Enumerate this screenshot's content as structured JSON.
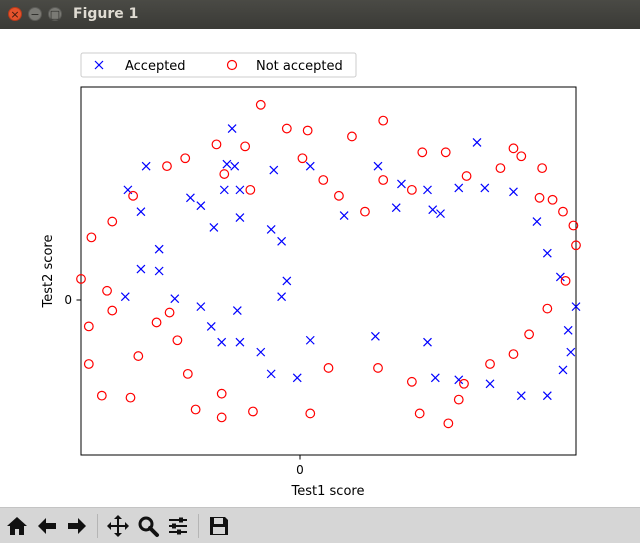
{
  "window": {
    "title": "Figure 1"
  },
  "titlebar_buttons": [
    {
      "name": "close",
      "glyph": "×"
    },
    {
      "name": "minimize",
      "glyph": "−"
    },
    {
      "name": "maximize",
      "glyph": "□"
    }
  ],
  "toolbar": {
    "buttons": [
      {
        "name": "home",
        "icon": "home-icon"
      },
      {
        "name": "back",
        "icon": "arrow-left-icon"
      },
      {
        "name": "forward",
        "icon": "arrow-right-icon"
      },
      {
        "name": "pan",
        "icon": "move-icon"
      },
      {
        "name": "zoom",
        "icon": "zoom-icon"
      },
      {
        "name": "subplots",
        "icon": "sliders-icon"
      },
      {
        "name": "save",
        "icon": "save-icon"
      }
    ]
  },
  "colors": {
    "accepted": "#0000ff",
    "not_accepted": "#ff0000",
    "titlebar": "#3c3b37",
    "toolbar": "#d6d6d6"
  },
  "chart_data": {
    "type": "scatter",
    "title": "",
    "xlabel": "Test1 score",
    "ylabel": "Test2 score",
    "xlim": [
      -0.83,
      1.07
    ],
    "ylim": [
      -0.76,
      1.1
    ],
    "xticks": [
      0
    ],
    "xtick_labels": [
      "0"
    ],
    "yticks": [
      0
    ],
    "ytick_labels": [
      "0"
    ],
    "legend": {
      "position": "top-left-outside",
      "entries": [
        "Accepted",
        "Not accepted"
      ]
    },
    "series": [
      {
        "name": "Accepted",
        "marker": "x",
        "color": "#0000ff",
        "points": [
          [
            -0.25,
            0.89
          ],
          [
            -0.27,
            0.71
          ],
          [
            -0.09,
            0.68
          ],
          [
            0.05,
            0.7
          ],
          [
            0.18,
            0.45
          ],
          [
            0.31,
            0.7
          ],
          [
            0.4,
            0.61
          ],
          [
            0.38,
            0.49
          ],
          [
            0.5,
            0.58
          ],
          [
            0.52,
            0.48
          ],
          [
            0.55,
            0.46
          ],
          [
            0.62,
            0.59
          ],
          [
            0.69,
            0.82
          ],
          [
            0.72,
            0.59
          ],
          [
            0.83,
            0.57
          ],
          [
            0.92,
            0.42
          ],
          [
            0.96,
            0.26
          ],
          [
            1.01,
            0.14
          ],
          [
            1.07,
            -0.01
          ],
          [
            1.04,
            -0.13
          ],
          [
            1.05,
            -0.24
          ],
          [
            1.02,
            -0.33
          ],
          [
            0.96,
            -0.46
          ],
          [
            0.86,
            -0.46
          ],
          [
            0.74,
            -0.4
          ],
          [
            0.62,
            -0.38
          ],
          [
            0.53,
            -0.37
          ],
          [
            0.5,
            -0.19
          ],
          [
            0.3,
            -0.16
          ],
          [
            0.05,
            -0.18
          ],
          [
            0.0,
            -0.37
          ],
          [
            -0.1,
            -0.35
          ],
          [
            -0.14,
            -0.24
          ],
          [
            -0.22,
            -0.19
          ],
          [
            -0.29,
            -0.19
          ],
          [
            -0.33,
            -0.11
          ],
          [
            -0.23,
            -0.03
          ],
          [
            -0.37,
            -0.01
          ],
          [
            -0.47,
            0.03
          ],
          [
            -0.66,
            0.04
          ],
          [
            -0.6,
            0.18
          ],
          [
            -0.53,
            0.17
          ],
          [
            -0.53,
            0.28
          ],
          [
            -0.32,
            0.39
          ],
          [
            -0.37,
            0.5
          ],
          [
            -0.41,
            0.54
          ],
          [
            -0.6,
            0.47
          ],
          [
            -0.65,
            0.58
          ],
          [
            -0.58,
            0.7
          ],
          [
            -0.24,
            0.7
          ],
          [
            -0.28,
            0.58
          ],
          [
            -0.22,
            0.58
          ],
          [
            -0.22,
            0.44
          ],
          [
            -0.1,
            0.38
          ],
          [
            -0.06,
            0.32
          ],
          [
            -0.04,
            0.12
          ],
          [
            -0.06,
            0.04
          ]
        ]
      },
      {
        "name": "Not accepted",
        "marker": "o",
        "color": "#ff0000",
        "points": [
          [
            -0.14,
            1.01
          ],
          [
            -0.04,
            0.89
          ],
          [
            -0.2,
            0.8
          ],
          [
            0.04,
            0.88
          ],
          [
            0.21,
            0.85
          ],
          [
            0.33,
            0.93
          ],
          [
            0.48,
            0.77
          ],
          [
            0.57,
            0.77
          ],
          [
            0.65,
            0.65
          ],
          [
            0.78,
            0.69
          ],
          [
            0.83,
            0.79
          ],
          [
            0.86,
            0.75
          ],
          [
            0.94,
            0.69
          ],
          [
            0.93,
            0.54
          ],
          [
            0.98,
            0.53
          ],
          [
            1.02,
            0.47
          ],
          [
            1.06,
            0.4
          ],
          [
            1.07,
            0.3
          ],
          [
            1.03,
            0.12
          ],
          [
            0.96,
            -0.02
          ],
          [
            0.89,
            -0.15
          ],
          [
            0.83,
            -0.25
          ],
          [
            0.74,
            -0.3
          ],
          [
            0.64,
            -0.4
          ],
          [
            0.62,
            -0.48
          ],
          [
            0.58,
            -0.6
          ],
          [
            0.47,
            -0.55
          ],
          [
            0.44,
            -0.39
          ],
          [
            0.31,
            -0.32
          ],
          [
            0.12,
            -0.32
          ],
          [
            0.05,
            -0.55
          ],
          [
            -0.17,
            -0.54
          ],
          [
            -0.29,
            -0.57
          ],
          [
            -0.29,
            -0.45
          ],
          [
            -0.39,
            -0.53
          ],
          [
            -0.42,
            -0.35
          ],
          [
            -0.46,
            -0.18
          ],
          [
            -0.49,
            -0.04
          ],
          [
            -0.54,
            -0.09
          ],
          [
            -0.61,
            -0.26
          ],
          [
            -0.64,
            -0.47
          ],
          [
            -0.75,
            -0.46
          ],
          [
            -0.8,
            -0.3
          ],
          [
            -0.8,
            -0.11
          ],
          [
            -0.71,
            -0.03
          ],
          [
            -0.73,
            0.07
          ],
          [
            -0.83,
            0.13
          ],
          [
            -0.79,
            0.34
          ],
          [
            -0.71,
            0.42
          ],
          [
            -0.63,
            0.55
          ],
          [
            -0.5,
            0.7
          ],
          [
            -0.43,
            0.74
          ],
          [
            -0.31,
            0.81
          ],
          [
            -0.28,
            0.66
          ],
          [
            -0.18,
            0.58
          ],
          [
            0.02,
            0.74
          ],
          [
            0.1,
            0.63
          ],
          [
            0.16,
            0.55
          ],
          [
            0.26,
            0.47
          ],
          [
            0.33,
            0.63
          ],
          [
            0.44,
            0.58
          ]
        ]
      }
    ]
  }
}
